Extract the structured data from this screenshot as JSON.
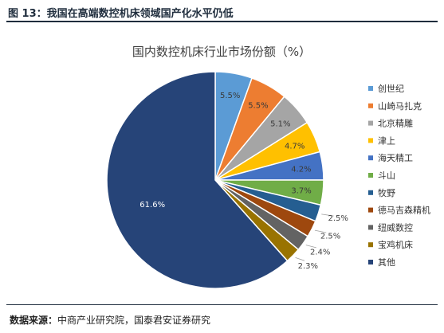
{
  "figure": {
    "title": "图 13：我国在高端数控机床领域国产化水平仍低",
    "source_label": "数据来源：",
    "source_text": "中商产业研究院，国泰君安证券研究"
  },
  "chart_data": {
    "type": "pie",
    "title": "国内数控机床行业市场份额（%）",
    "unit": "%",
    "legend_position": "right",
    "slices": [
      {
        "name": "创世纪",
        "value": 5.5,
        "label": "5.5%",
        "color": "#5b9bd5"
      },
      {
        "name": "山崎马扎克",
        "value": 5.5,
        "label": "5.5%",
        "color": "#ed7d31"
      },
      {
        "name": "北京精雕",
        "value": 5.1,
        "label": "5.1%",
        "color": "#a5a5a5"
      },
      {
        "name": "津上",
        "value": 4.7,
        "label": "4.7%",
        "color": "#ffc000"
      },
      {
        "name": "海天精工",
        "value": 4.2,
        "label": "4.2%",
        "color": "#4472c4"
      },
      {
        "name": "斗山",
        "value": 3.7,
        "label": "3.7%",
        "color": "#70ad47"
      },
      {
        "name": "牧野",
        "value": 2.5,
        "label": "2.5%",
        "color": "#255e91"
      },
      {
        "name": "德马吉森精机",
        "value": 2.5,
        "label": "2.5%",
        "color": "#9e480e"
      },
      {
        "name": "纽威数控",
        "value": 2.4,
        "label": "2.4%",
        "color": "#636363"
      },
      {
        "name": "宝鸡机床",
        "value": 2.3,
        "label": "2.3%",
        "color": "#997300"
      },
      {
        "name": "其他",
        "value": 61.6,
        "label": "61.6%",
        "color": "#264478"
      }
    ]
  }
}
